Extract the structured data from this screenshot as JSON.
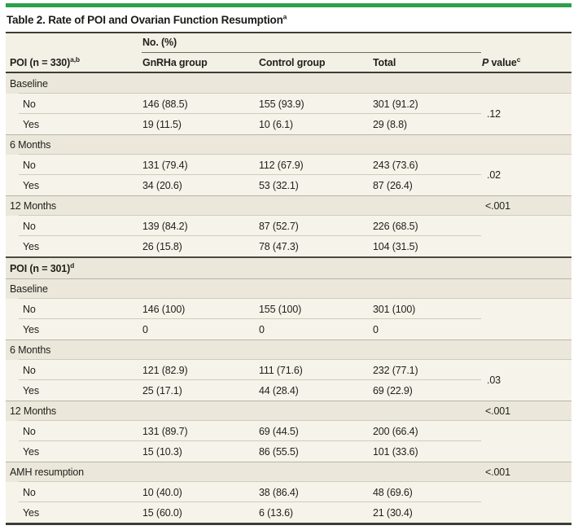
{
  "page": {
    "accent_green": "#2da04a",
    "table_bg": "#f6f3ea",
    "section_bg": "#ebe8db"
  },
  "title": {
    "text": "Table 2. Rate of POI and Ovarian Function Resumption",
    "sup": "a"
  },
  "header": {
    "group_label": "No. (%)",
    "stub": {
      "text": "POI (n = 330)",
      "sup": "a,b"
    },
    "col_gnrha": "GnRHa group",
    "col_control": "Control group",
    "col_total": "Total",
    "pvalue": {
      "p": "P",
      "rest": " value",
      "sup": "c"
    }
  },
  "sections": [
    {
      "label": "Baseline",
      "pv_span": ".12",
      "rows": [
        {
          "label": "No",
          "gnrha": "146 (88.5)",
          "control": "155 (93.9)",
          "total": "301 (91.2)"
        },
        {
          "label": "Yes",
          "gnrha": "19 (11.5)",
          "control": "10 (6.1)",
          "total": "29 (8.8)"
        }
      ]
    },
    {
      "label": "6 Months",
      "pv_span": ".02",
      "rows": [
        {
          "label": "No",
          "gnrha": "131 (79.4)",
          "control": "112 (67.9)",
          "total": "243 (73.6)"
        },
        {
          "label": "Yes",
          "gnrha": "34 (20.6)",
          "control": "53 (32.1)",
          "total": "87 (26.4)"
        }
      ]
    },
    {
      "label": "12 Months",
      "pv_header": "<.001",
      "rows": [
        {
          "label": "No",
          "gnrha": "139 (84.2)",
          "control": "87 (52.7)",
          "total": "226 (68.5)"
        },
        {
          "label": "Yes",
          "gnrha": "26 (15.8)",
          "control": "78 (47.3)",
          "total": "104 (31.5)"
        }
      ]
    },
    {
      "label": "POI (n = 301)",
      "sup": "d",
      "divider": true
    },
    {
      "label": "Baseline",
      "rows": [
        {
          "label": "No",
          "gnrha": "146 (100)",
          "control": "155 (100)",
          "total": "301 (100)"
        },
        {
          "label": "Yes",
          "gnrha": "0",
          "control": "0",
          "total": "0"
        }
      ]
    },
    {
      "label": "6 Months",
      "pv_span": ".03",
      "rows": [
        {
          "label": "No",
          "gnrha": "121 (82.9)",
          "control": "111 (71.6)",
          "total": "232 (77.1)"
        },
        {
          "label": "Yes",
          "gnrha": "25 (17.1)",
          "control": "44 (28.4)",
          "total": "69 (22.9)"
        }
      ]
    },
    {
      "label": "12 Months",
      "pv_header": "<.001",
      "rows": [
        {
          "label": "No",
          "gnrha": "131 (89.7)",
          "control": "69 (44.5)",
          "total": "200 (66.4)"
        },
        {
          "label": "Yes",
          "gnrha": "15 (10.3)",
          "control": "86 (55.5)",
          "total": "101 (33.6)"
        }
      ]
    },
    {
      "label": "AMH resumption",
      "pv_header": "<.001",
      "rows": [
        {
          "label": "No",
          "gnrha": "10 (40.0)",
          "control": "38 (86.4)",
          "total": "48 (69.6)"
        },
        {
          "label": "Yes",
          "gnrha": "15 (60.0)",
          "control": "6 (13.6)",
          "total": "21 (30.4)"
        }
      ]
    }
  ]
}
